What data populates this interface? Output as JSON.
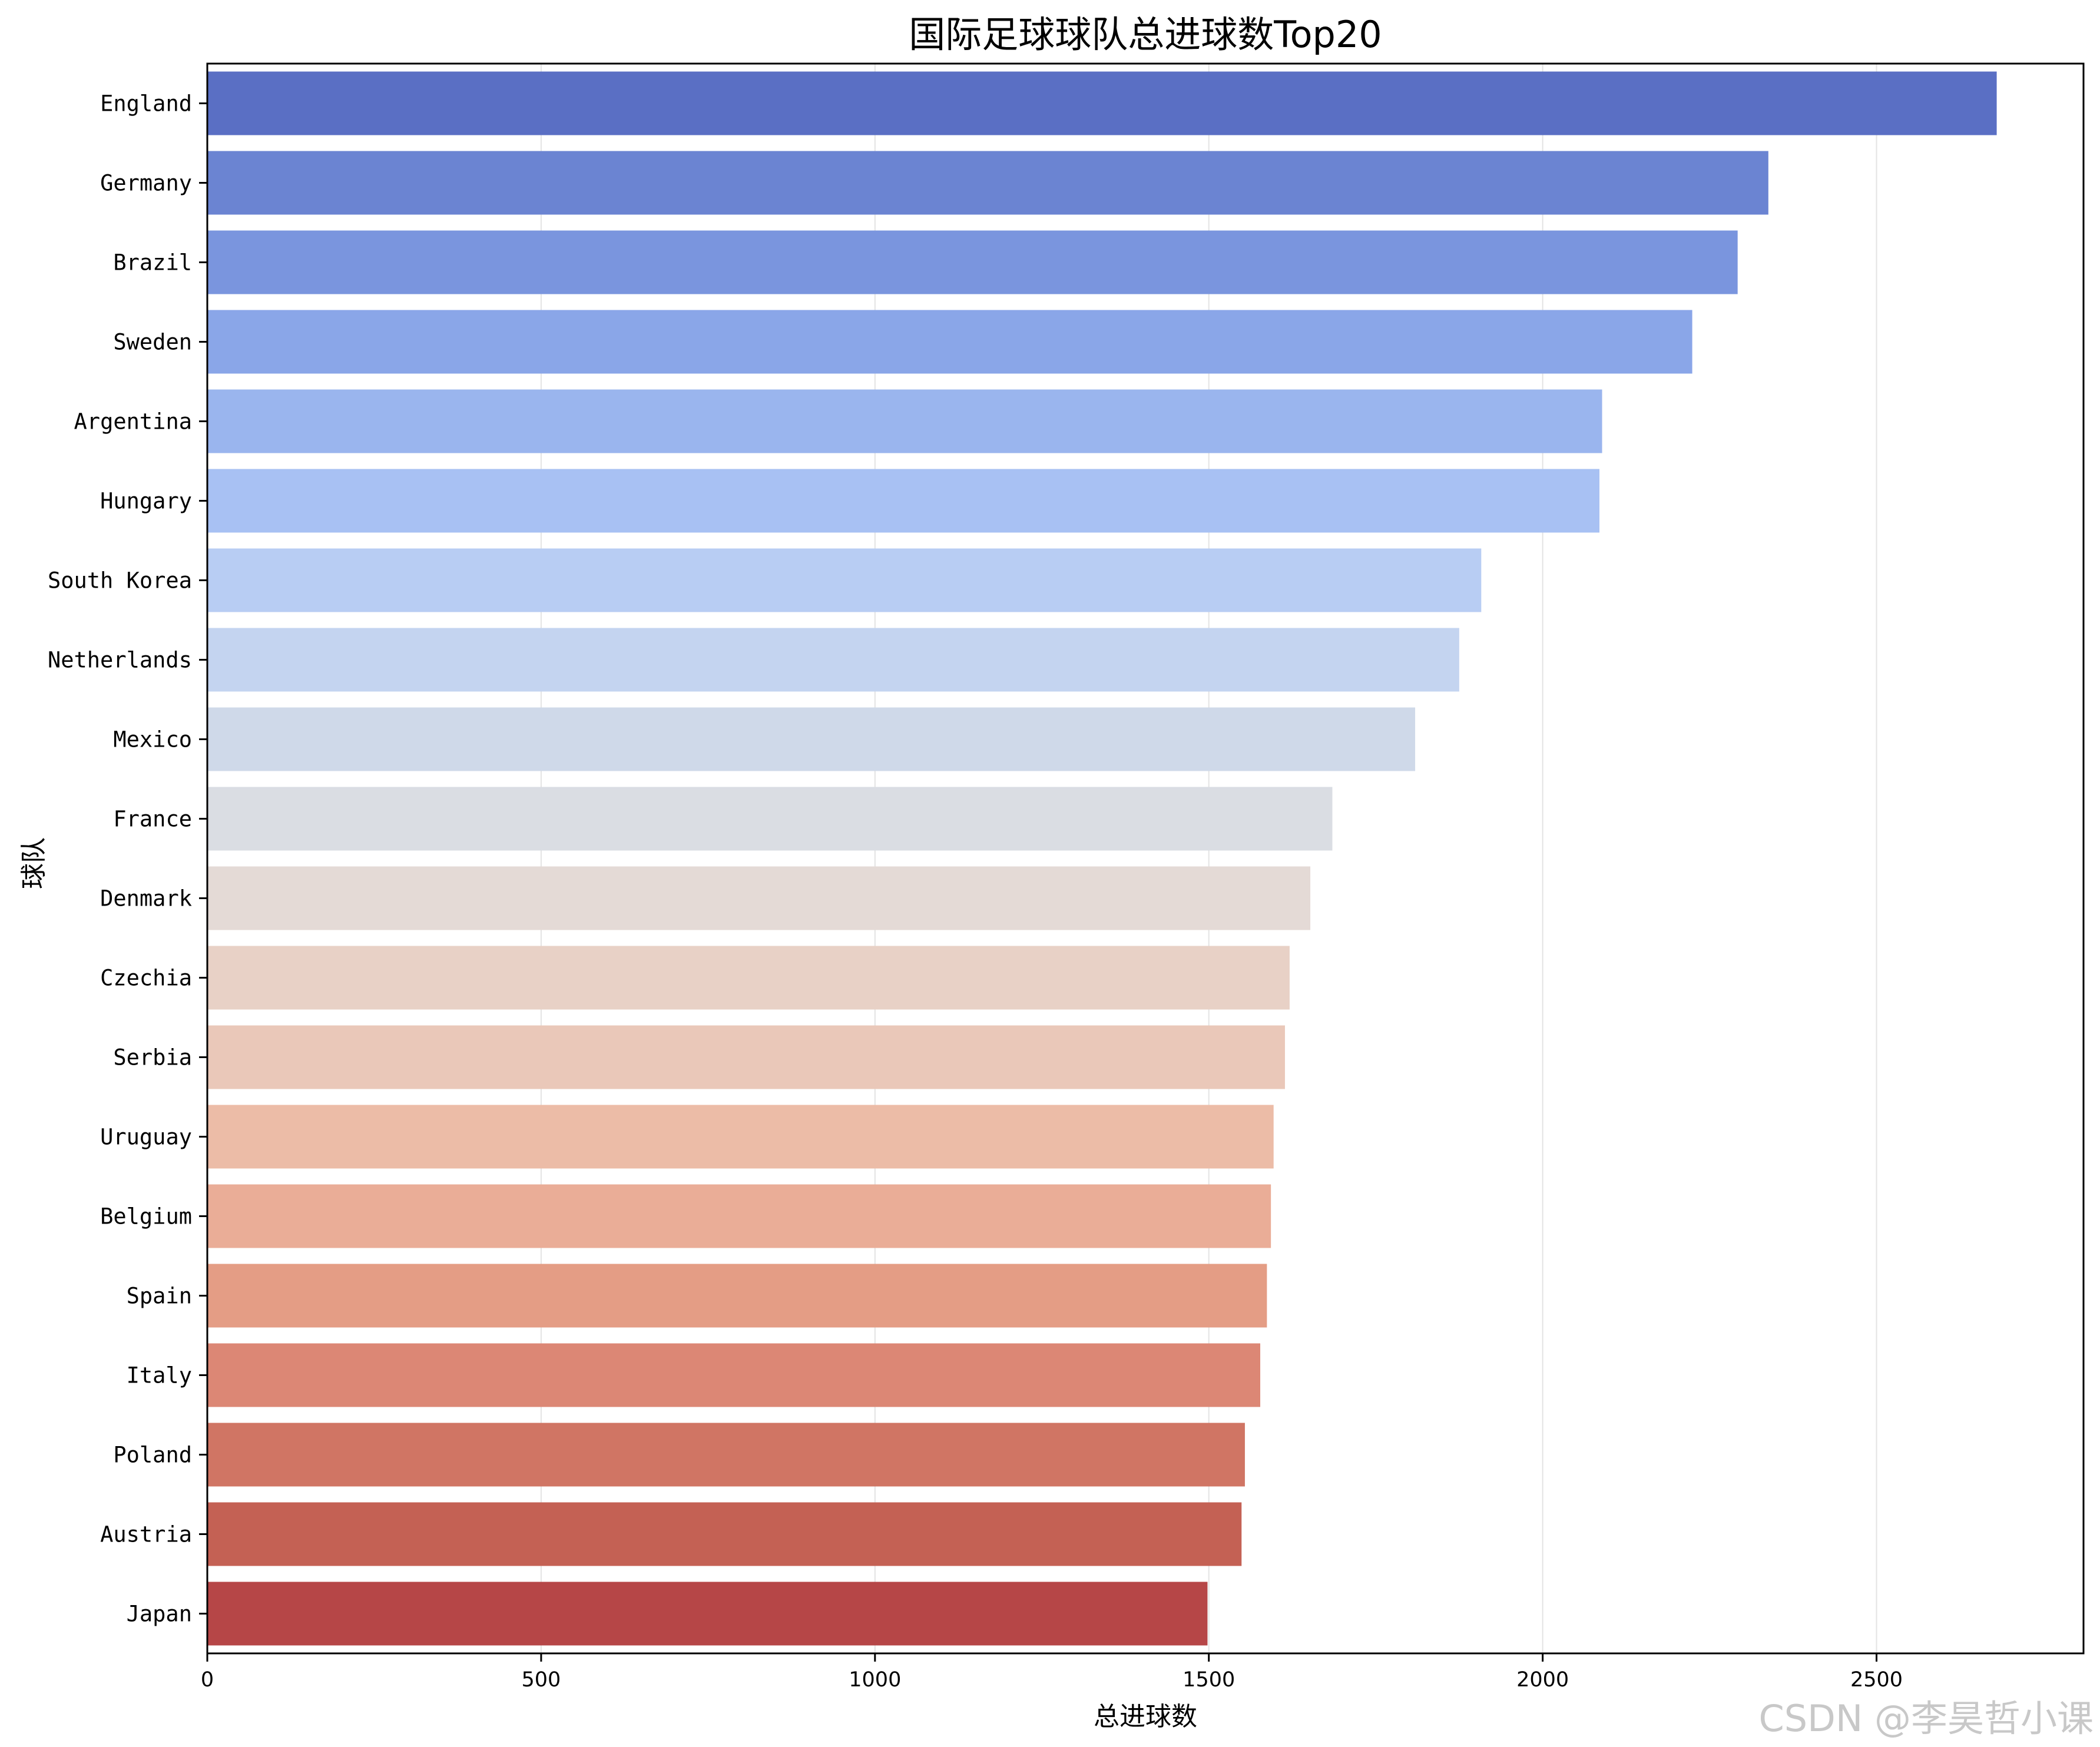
{
  "chart_data": {
    "type": "bar",
    "orientation": "horizontal",
    "title": "国际足球球队总进球数Top20",
    "xlabel": "总进球数",
    "ylabel": "球队",
    "xlim": [
      0,
      2810
    ],
    "xticks": [
      0,
      500,
      1000,
      1500,
      2000,
      2500
    ],
    "grid": "x",
    "categories": [
      "England",
      "Germany",
      "Brazil",
      "Sweden",
      "Argentina",
      "Hungary",
      "South Korea",
      "Netherlands",
      "Mexico",
      "France",
      "Denmark",
      "Czechia",
      "Serbia",
      "Uruguay",
      "Belgium",
      "Spain",
      "Italy",
      "Poland",
      "Austria",
      "Japan"
    ],
    "values": [
      2680,
      2338,
      2292,
      2224,
      2089,
      2085,
      1908,
      1875,
      1809,
      1685,
      1652,
      1621,
      1614,
      1597,
      1593,
      1587,
      1577,
      1554,
      1549,
      1498
    ],
    "colors": [
      "#5a6fc4",
      "#6b84d2",
      "#7a95de",
      "#8aa6e8",
      "#9ab5ee",
      "#a8c1f3",
      "#b8cdf3",
      "#c4d4f0",
      "#cfd9e9",
      "#dadde3",
      "#e4dad6",
      "#e8d1c6",
      "#eac8b9",
      "#ecbca7",
      "#eaad97",
      "#e49d85",
      "#dc8775",
      "#d07564",
      "#c46154",
      "#b64647"
    ]
  },
  "watermark": "CSDN @李昊哲小课"
}
